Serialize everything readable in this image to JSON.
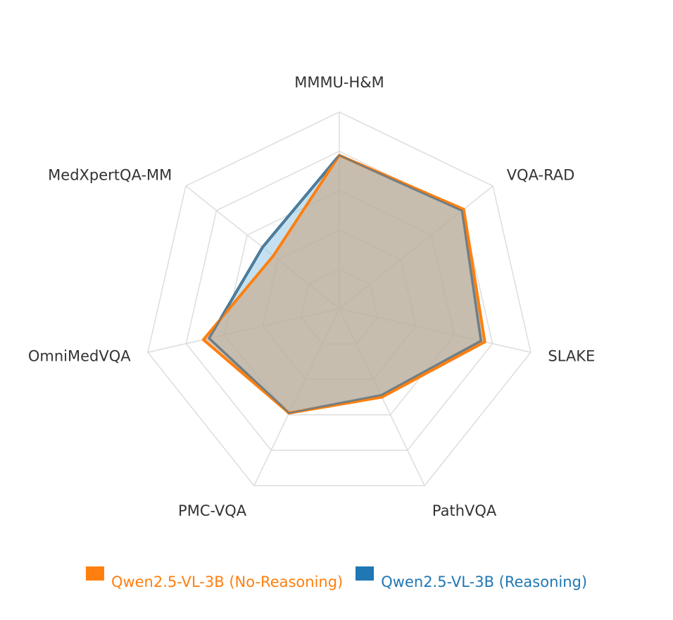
{
  "chart_data": {
    "type": "radar",
    "axes": [
      "MMMU-H&M",
      "VQA-RAD",
      "SLAKE",
      "PathVQA",
      "PMC-VQA",
      "OmniMedVQA",
      "MedXpertQA-MM"
    ],
    "rmax": 100,
    "grid_rings": 5,
    "grid": true,
    "legend_position": "bottom",
    "series": [
      {
        "name": "Qwen2.5-VL-3B (No-Reasoning)",
        "color": "#ff7f0e",
        "fill": "rgba(200,160,120,0.55)",
        "values": [
          78,
          81,
          76,
          50,
          59,
          71,
          43
        ]
      },
      {
        "name": "Qwen2.5-VL-3B (Reasoning)",
        "color": "#1f77b4",
        "fill": "rgba(150,200,230,0.55)",
        "values": [
          78,
          80,
          74,
          49,
          59,
          68,
          50
        ]
      }
    ]
  }
}
